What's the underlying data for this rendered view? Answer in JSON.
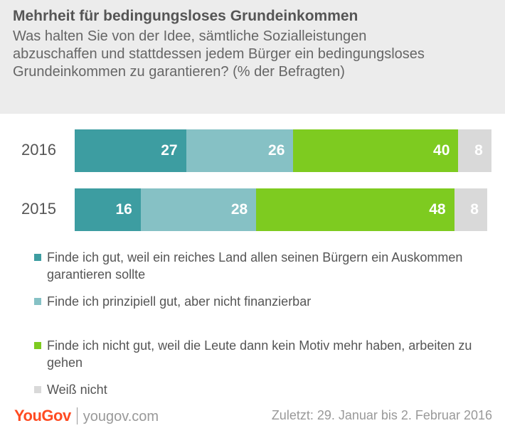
{
  "header": {
    "title": "Mehrheit für bedingungsloses Grundeinkommen",
    "subtitle": "Was halten Sie von der Idee, sämtliche Sozialleistungen abzuschaffen und stattdessen jedem Bürger ein bedingungsloses Grundeinkommen zu garantieren? (% der Befragten)"
  },
  "chart_data": {
    "type": "bar",
    "orientation": "horizontal-stacked",
    "categories": [
      "2016",
      "2015"
    ],
    "series": [
      {
        "name": "Finde ich gut, weil ein reiches Land allen seinen Bürgern ein Auskommen garantieren sollte",
        "values": [
          27,
          16
        ],
        "color": "#3d9da1"
      },
      {
        "name": "Finde ich prinzipiell gut, aber nicht finanzierbar",
        "values": [
          26,
          28
        ],
        "color": "#86c1c5"
      },
      {
        "name": "Finde ich nicht gut, weil die Leute dann kein Motiv mehr haben, arbeiten zu gehen",
        "values": [
          40,
          48
        ],
        "color": "#7ecb20"
      },
      {
        "name": "Weiß nicht",
        "values": [
          8,
          8
        ],
        "color": "#d9d9d9"
      }
    ],
    "title": "Mehrheit für bedingungsloses Grundeinkommen",
    "legend_position": "bottom"
  },
  "footer": {
    "logo_you": "You",
    "logo_gov": "Gov",
    "site": "yougov.com",
    "date_note": "Zuletzt: 29. Januar bis 2. Februar 2016"
  }
}
